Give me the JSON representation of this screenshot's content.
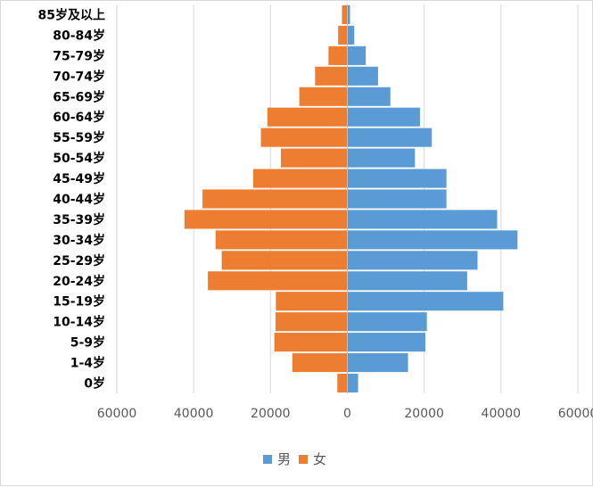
{
  "chart_data": {
    "type": "bar",
    "orientation": "horizontal",
    "subtype": "population-pyramid",
    "title": "",
    "xlabel": "",
    "ylabel": "",
    "categories": [
      "85岁及以上",
      "80-84岁",
      "75-79岁",
      "70-74岁",
      "65-69岁",
      "60-64岁",
      "55-59岁",
      "50-54岁",
      "45-49岁",
      "40-44岁",
      "35-39岁",
      "30-34岁",
      "25-29岁",
      "20-24岁",
      "15-19岁",
      "10-14岁",
      "5-9岁",
      "1-4岁",
      "0岁"
    ],
    "series": [
      {
        "name": "男",
        "color": "#5B9BD5",
        "side": "right",
        "values": [
          700,
          1800,
          4800,
          8000,
          11200,
          18900,
          22000,
          17600,
          25800,
          25800,
          39000,
          44300,
          33900,
          31200,
          40600,
          20700,
          20300,
          15800,
          2800
        ]
      },
      {
        "name": "女",
        "color": "#ED7D31",
        "side": "left",
        "values": [
          1400,
          2400,
          4900,
          8400,
          12500,
          20800,
          22500,
          17300,
          24500,
          37700,
          42400,
          34300,
          32700,
          36300,
          18600,
          18700,
          19000,
          14300,
          2600
        ]
      }
    ],
    "xlim": [
      -60000,
      60000
    ],
    "xticks": [
      -60000,
      -40000,
      -20000,
      0,
      20000,
      40000,
      60000
    ],
    "xtick_labels": [
      "60000",
      "40000",
      "20000",
      "0",
      "20000",
      "40000",
      "60000"
    ],
    "grid": "vertical",
    "legend": "bottom"
  }
}
